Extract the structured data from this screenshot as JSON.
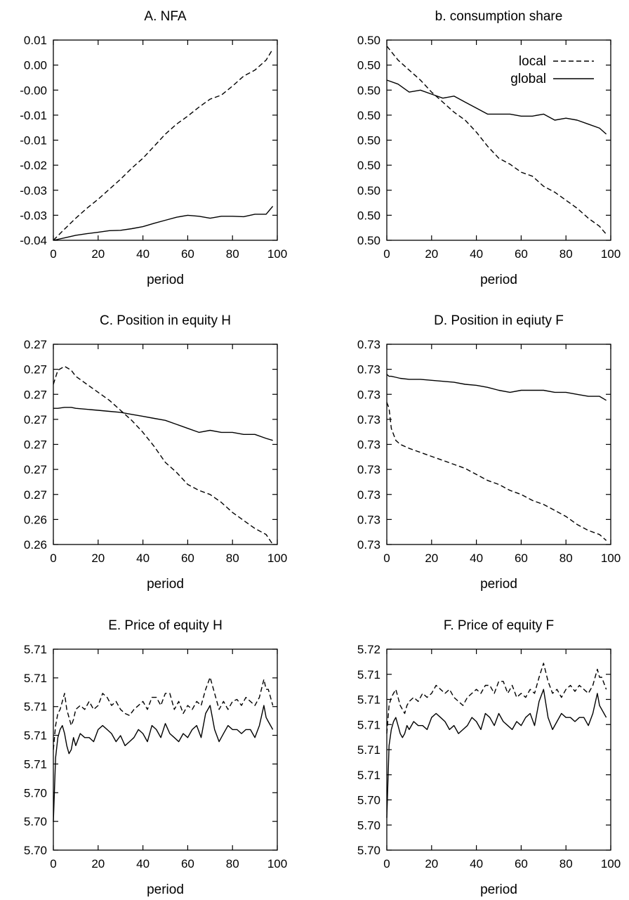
{
  "xlabel": "period",
  "xticks": [
    "0",
    "20",
    "40",
    "60",
    "80",
    "100"
  ],
  "legend": {
    "placement": "top-right",
    "entries": [
      "local",
      "global"
    ]
  },
  "chart_data": [
    {
      "type": "line",
      "title": "A. NFA",
      "xlabel": "period",
      "xlim": [
        0,
        100
      ],
      "yticks": [
        "0.01",
        "0.00",
        "-0.00",
        "-0.01",
        "-0.01",
        "-0.02",
        "-0.03",
        "-0.03",
        "-0.04"
      ],
      "show_legend": false,
      "x": [
        0,
        5,
        10,
        15,
        20,
        25,
        30,
        35,
        40,
        45,
        50,
        55,
        60,
        65,
        70,
        75,
        80,
        85,
        90,
        95,
        98
      ],
      "series": [
        {
          "style": "dashed",
          "level": [
            0.0,
            0.056,
            0.11,
            0.16,
            0.205,
            0.255,
            0.305,
            0.36,
            0.41,
            0.47,
            0.53,
            0.58,
            0.62,
            0.665,
            0.705,
            0.725,
            0.77,
            0.82,
            0.85,
            0.9,
            0.955
          ]
        },
        {
          "style": "solid",
          "level": [
            0.0,
            0.012,
            0.025,
            0.033,
            0.04,
            0.048,
            0.05,
            0.058,
            0.068,
            0.085,
            0.1,
            0.115,
            0.125,
            0.12,
            0.11,
            0.12,
            0.12,
            0.118,
            0.13,
            0.13,
            0.17
          ]
        }
      ]
    },
    {
      "type": "line",
      "title": "b. consumption share",
      "xlabel": "period",
      "xlim": [
        0,
        100
      ],
      "yticks": [
        "0.50",
        "0.50",
        "0.50",
        "0.50",
        "0.50",
        "0.50",
        "0.50",
        "0.50",
        "0.50"
      ],
      "show_legend": true,
      "x": [
        0,
        5,
        10,
        15,
        20,
        25,
        30,
        35,
        40,
        45,
        50,
        55,
        60,
        65,
        70,
        75,
        80,
        85,
        90,
        95,
        98
      ],
      "series": [
        {
          "name": "local",
          "style": "dashed",
          "level": [
            0.97,
            0.9,
            0.85,
            0.8,
            0.74,
            0.69,
            0.64,
            0.6,
            0.54,
            0.47,
            0.41,
            0.38,
            0.34,
            0.32,
            0.27,
            0.24,
            0.2,
            0.16,
            0.11,
            0.07,
            0.03
          ]
        },
        {
          "name": "global",
          "style": "solid",
          "level": [
            0.8,
            0.78,
            0.74,
            0.75,
            0.73,
            0.71,
            0.72,
            0.69,
            0.66,
            0.63,
            0.63,
            0.63,
            0.62,
            0.62,
            0.63,
            0.6,
            0.61,
            0.6,
            0.58,
            0.56,
            0.53
          ]
        }
      ]
    },
    {
      "type": "line",
      "title": "C. Position in equity H",
      "xlabel": "period",
      "xlim": [
        0,
        100
      ],
      "yticks": [
        "0.27",
        "0.27",
        "0.27",
        "0.27",
        "0.27",
        "0.27",
        "0.27",
        "0.26",
        "0.26"
      ],
      "show_legend": false,
      "x": [
        0,
        2,
        5,
        8,
        10,
        15,
        20,
        25,
        30,
        35,
        40,
        45,
        50,
        55,
        60,
        65,
        70,
        75,
        80,
        85,
        90,
        95,
        98
      ],
      "series": [
        {
          "style": "dashed",
          "level": [
            0.8,
            0.87,
            0.89,
            0.87,
            0.84,
            0.8,
            0.76,
            0.72,
            0.67,
            0.62,
            0.56,
            0.49,
            0.41,
            0.36,
            0.3,
            0.27,
            0.25,
            0.21,
            0.16,
            0.12,
            0.08,
            0.05,
            0.0
          ]
        },
        {
          "style": "solid",
          "level": [
            0.68,
            0.68,
            0.685,
            0.685,
            0.68,
            0.675,
            0.67,
            0.665,
            0.66,
            0.65,
            0.64,
            0.63,
            0.62,
            0.6,
            0.58,
            0.56,
            0.57,
            0.56,
            0.56,
            0.55,
            0.55,
            0.53,
            0.52
          ]
        }
      ]
    },
    {
      "type": "line",
      "title": "D. Position in eqiuty F",
      "xlabel": "period",
      "xlim": [
        0,
        100
      ],
      "yticks": [
        "0.73",
        "0.73",
        "0.73",
        "0.73",
        "0.73",
        "0.73",
        "0.73",
        "0.73",
        "0.73"
      ],
      "show_legend": false,
      "x": [
        0,
        1,
        2,
        4,
        6,
        10,
        15,
        20,
        25,
        30,
        35,
        40,
        45,
        50,
        55,
        60,
        65,
        70,
        75,
        80,
        85,
        90,
        95,
        98
      ],
      "series": [
        {
          "style": "dashed",
          "level": [
            0.71,
            0.68,
            0.58,
            0.52,
            0.5,
            0.48,
            0.46,
            0.44,
            0.42,
            0.4,
            0.38,
            0.35,
            0.32,
            0.3,
            0.27,
            0.25,
            0.22,
            0.2,
            0.17,
            0.14,
            0.1,
            0.07,
            0.05,
            0.02
          ]
        },
        {
          "style": "solid",
          "level": [
            0.85,
            0.84,
            0.84,
            0.835,
            0.83,
            0.825,
            0.825,
            0.82,
            0.815,
            0.81,
            0.8,
            0.795,
            0.785,
            0.77,
            0.76,
            0.77,
            0.77,
            0.77,
            0.76,
            0.76,
            0.75,
            0.74,
            0.74,
            0.72
          ]
        }
      ]
    },
    {
      "type": "line",
      "title": "E. Price of equity H",
      "xlabel": "period",
      "xlim": [
        0,
        100
      ],
      "yticks": [
        "5.71",
        "5.71",
        "5.71",
        "5.71",
        "5.71",
        "5.70",
        "5.70",
        "5.70"
      ],
      "show_legend": false,
      "x": [
        0,
        1,
        2,
        3,
        4,
        5,
        6,
        7,
        8,
        9,
        10,
        12,
        14,
        16,
        18,
        20,
        22,
        24,
        26,
        28,
        30,
        32,
        34,
        36,
        38,
        40,
        42,
        44,
        46,
        48,
        50,
        52,
        54,
        56,
        58,
        60,
        62,
        64,
        66,
        68,
        70,
        72,
        74,
        76,
        78,
        80,
        82,
        84,
        86,
        88,
        90,
        92,
        94,
        95,
        96,
        98
      ],
      "series": [
        {
          "style": "dashed",
          "level": [
            0.5,
            0.62,
            0.68,
            0.7,
            0.74,
            0.78,
            0.7,
            0.66,
            0.62,
            0.65,
            0.7,
            0.72,
            0.7,
            0.74,
            0.7,
            0.72,
            0.78,
            0.76,
            0.72,
            0.74,
            0.7,
            0.68,
            0.67,
            0.7,
            0.72,
            0.74,
            0.7,
            0.76,
            0.76,
            0.72,
            0.78,
            0.78,
            0.7,
            0.74,
            0.68,
            0.72,
            0.7,
            0.74,
            0.72,
            0.8,
            0.86,
            0.78,
            0.7,
            0.74,
            0.7,
            0.74,
            0.75,
            0.72,
            0.76,
            0.74,
            0.72,
            0.76,
            0.85,
            0.8,
            0.8,
            0.72
          ]
        },
        {
          "style": "solid",
          "level": [
            0.14,
            0.46,
            0.56,
            0.6,
            0.62,
            0.58,
            0.52,
            0.48,
            0.5,
            0.56,
            0.52,
            0.58,
            0.56,
            0.56,
            0.54,
            0.6,
            0.62,
            0.6,
            0.58,
            0.54,
            0.57,
            0.52,
            0.54,
            0.56,
            0.6,
            0.58,
            0.54,
            0.62,
            0.6,
            0.56,
            0.63,
            0.58,
            0.56,
            0.54,
            0.58,
            0.56,
            0.6,
            0.62,
            0.56,
            0.68,
            0.72,
            0.6,
            0.54,
            0.58,
            0.62,
            0.6,
            0.6,
            0.58,
            0.6,
            0.6,
            0.56,
            0.62,
            0.72,
            0.66,
            0.64,
            0.6
          ]
        }
      ]
    },
    {
      "type": "line",
      "title": "F. Price of equity F",
      "xlabel": "period",
      "xlim": [
        0,
        100
      ],
      "yticks": [
        "5.72",
        "5.71",
        "5.71",
        "5.71",
        "5.71",
        "5.71",
        "5.70",
        "5.70",
        "5.70"
      ],
      "show_legend": false,
      "x": [
        0,
        1,
        2,
        3,
        4,
        5,
        6,
        7,
        8,
        9,
        10,
        12,
        14,
        16,
        18,
        20,
        22,
        24,
        26,
        28,
        30,
        32,
        34,
        36,
        38,
        40,
        42,
        44,
        46,
        48,
        50,
        52,
        54,
        56,
        58,
        60,
        62,
        64,
        66,
        68,
        70,
        72,
        74,
        76,
        78,
        80,
        82,
        84,
        86,
        88,
        90,
        92,
        94,
        95,
        96,
        98
      ],
      "series": [
        {
          "style": "dashed",
          "level": [
            0.58,
            0.72,
            0.76,
            0.78,
            0.8,
            0.76,
            0.72,
            0.7,
            0.68,
            0.72,
            0.74,
            0.76,
            0.74,
            0.78,
            0.76,
            0.78,
            0.82,
            0.8,
            0.78,
            0.8,
            0.76,
            0.74,
            0.72,
            0.76,
            0.78,
            0.8,
            0.78,
            0.82,
            0.82,
            0.78,
            0.84,
            0.84,
            0.78,
            0.82,
            0.76,
            0.78,
            0.76,
            0.8,
            0.78,
            0.86,
            0.93,
            0.84,
            0.78,
            0.8,
            0.76,
            0.8,
            0.82,
            0.79,
            0.82,
            0.8,
            0.78,
            0.82,
            0.9,
            0.86,
            0.86,
            0.8
          ]
        },
        {
          "style": "solid",
          "level": [
            0.16,
            0.52,
            0.6,
            0.64,
            0.66,
            0.62,
            0.58,
            0.56,
            0.58,
            0.62,
            0.6,
            0.64,
            0.62,
            0.62,
            0.6,
            0.66,
            0.68,
            0.66,
            0.64,
            0.6,
            0.62,
            0.58,
            0.6,
            0.62,
            0.66,
            0.64,
            0.6,
            0.68,
            0.66,
            0.62,
            0.68,
            0.64,
            0.62,
            0.6,
            0.64,
            0.62,
            0.66,
            0.68,
            0.62,
            0.74,
            0.8,
            0.66,
            0.6,
            0.64,
            0.68,
            0.66,
            0.66,
            0.64,
            0.66,
            0.66,
            0.62,
            0.68,
            0.78,
            0.72,
            0.7,
            0.66
          ]
        }
      ]
    }
  ]
}
